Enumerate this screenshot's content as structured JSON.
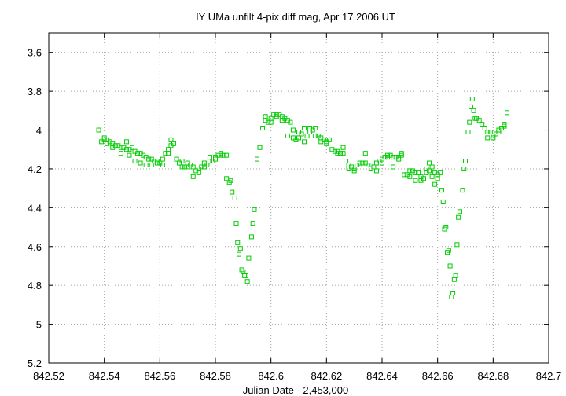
{
  "chart_data": {
    "type": "scatter",
    "title": "IY UMa unfilt 4-pix diff mag, Apr 17 2006 UT",
    "xlabel": "Julian Date - 2,453,000",
    "ylabel": "",
    "xlim": [
      842.52,
      842.7
    ],
    "ylim": [
      5.2,
      3.5
    ],
    "y_inverted": true,
    "grid": true,
    "legend": "none",
    "marker": "open-square",
    "color": "#00cc00",
    "x_ticks": [
      "842.52",
      "842.54",
      "842.56",
      "842.58",
      "842.6",
      "842.62",
      "842.64",
      "842.66",
      "842.68",
      "842.7"
    ],
    "x_tick_values": [
      842.52,
      842.54,
      842.56,
      842.58,
      842.6,
      842.62,
      842.64,
      842.66,
      842.68,
      842.7
    ],
    "y_ticks": [
      "3.6",
      "3.8",
      "4",
      "4.2",
      "4.4",
      "4.6",
      "4.8",
      "5",
      "5.2"
    ],
    "y_tick_values": [
      3.6,
      3.8,
      4.0,
      4.2,
      4.4,
      4.6,
      4.8,
      5.0,
      5.2
    ],
    "points": [
      [
        842.538,
        4.0
      ],
      [
        842.539,
        4.06
      ],
      [
        842.54,
        4.05
      ],
      [
        842.541,
        4.05
      ],
      [
        842.542,
        4.06
      ],
      [
        842.543,
        4.07
      ],
      [
        842.544,
        4.08
      ],
      [
        842.545,
        4.08
      ],
      [
        842.546,
        4.09
      ],
      [
        842.547,
        4.09
      ],
      [
        842.548,
        4.1
      ],
      [
        842.549,
        4.1
      ],
      [
        842.55,
        4.09
      ],
      [
        842.551,
        4.11
      ],
      [
        842.552,
        4.12
      ],
      [
        842.553,
        4.12
      ],
      [
        842.554,
        4.13
      ],
      [
        842.555,
        4.14
      ],
      [
        842.556,
        4.15
      ],
      [
        842.557,
        4.15
      ],
      [
        842.558,
        4.16
      ],
      [
        842.559,
        4.16
      ],
      [
        842.56,
        4.17
      ],
      [
        842.561,
        4.15
      ],
      [
        842.562,
        4.12
      ],
      [
        842.563,
        4.1
      ],
      [
        842.564,
        4.08
      ],
      [
        842.565,
        4.07
      ],
      [
        842.54,
        4.04
      ],
      [
        842.541,
        4.07
      ],
      [
        842.543,
        4.09
      ],
      [
        842.546,
        4.12
      ],
      [
        842.548,
        4.06
      ],
      [
        842.549,
        4.13
      ],
      [
        842.551,
        4.16
      ],
      [
        842.553,
        4.17
      ],
      [
        842.555,
        4.18
      ],
      [
        842.557,
        4.18
      ],
      [
        842.559,
        4.17
      ],
      [
        842.561,
        4.18
      ],
      [
        842.563,
        4.12
      ],
      [
        842.564,
        4.05
      ],
      [
        842.566,
        4.15
      ],
      [
        842.567,
        4.17
      ],
      [
        842.568,
        4.19
      ],
      [
        842.569,
        4.19
      ],
      [
        842.57,
        4.17
      ],
      [
        842.571,
        4.18
      ],
      [
        842.572,
        4.19
      ],
      [
        842.573,
        4.21
      ],
      [
        842.574,
        4.2
      ],
      [
        842.575,
        4.19
      ],
      [
        842.576,
        4.17
      ],
      [
        842.577,
        4.18
      ],
      [
        842.578,
        4.16
      ],
      [
        842.579,
        4.16
      ],
      [
        842.58,
        4.14
      ],
      [
        842.581,
        4.13
      ],
      [
        842.582,
        4.13
      ],
      [
        842.583,
        4.13
      ],
      [
        842.584,
        4.13
      ],
      [
        842.568,
        4.16
      ],
      [
        842.57,
        4.19
      ],
      [
        842.572,
        4.24
      ],
      [
        842.574,
        4.22
      ],
      [
        842.576,
        4.19
      ],
      [
        842.578,
        4.14
      ],
      [
        842.58,
        4.15
      ],
      [
        842.582,
        4.12
      ],
      [
        842.584,
        4.25
      ],
      [
        842.585,
        4.27
      ],
      [
        842.5855,
        4.26
      ],
      [
        842.586,
        4.32
      ],
      [
        842.587,
        4.35
      ],
      [
        842.5875,
        4.48
      ],
      [
        842.588,
        4.58
      ],
      [
        842.5885,
        4.64
      ],
      [
        842.589,
        4.61
      ],
      [
        842.5895,
        4.72
      ],
      [
        842.59,
        4.73
      ],
      [
        842.5905,
        4.75
      ],
      [
        842.591,
        4.75
      ],
      [
        842.5915,
        4.78
      ],
      [
        842.592,
        4.66
      ],
      [
        842.593,
        4.55
      ],
      [
        842.5935,
        4.48
      ],
      [
        842.594,
        4.41
      ],
      [
        842.595,
        4.15
      ],
      [
        842.596,
        4.09
      ],
      [
        842.597,
        3.99
      ],
      [
        842.598,
        3.93
      ],
      [
        842.599,
        3.96
      ],
      [
        842.6,
        3.96
      ],
      [
        842.601,
        3.92
      ],
      [
        842.602,
        3.93
      ],
      [
        842.603,
        3.92
      ],
      [
        842.604,
        3.93
      ],
      [
        842.605,
        3.94
      ],
      [
        842.606,
        3.95
      ],
      [
        842.607,
        3.96
      ],
      [
        842.608,
        4.0
      ],
      [
        842.609,
        4.05
      ],
      [
        842.61,
        4.04
      ],
      [
        842.611,
        4.02
      ],
      [
        842.612,
        4.06
      ],
      [
        842.613,
        4.03
      ],
      [
        842.614,
        4.01
      ],
      [
        842.615,
        4.0
      ],
      [
        842.616,
        3.99
      ],
      [
        842.617,
        4.03
      ],
      [
        842.618,
        4.04
      ],
      [
        842.619,
        4.05
      ],
      [
        842.62,
        4.06
      ],
      [
        842.621,
        4.05
      ],
      [
        842.598,
        3.95
      ],
      [
        842.6,
        3.94
      ],
      [
        842.602,
        3.92
      ],
      [
        842.604,
        3.95
      ],
      [
        842.606,
        4.03
      ],
      [
        842.608,
        4.04
      ],
      [
        842.61,
        4.01
      ],
      [
        842.612,
        3.99
      ],
      [
        842.614,
        3.99
      ],
      [
        842.616,
        4.03
      ],
      [
        842.618,
        4.06
      ],
      [
        842.62,
        4.07
      ],
      [
        842.622,
        4.1
      ],
      [
        842.623,
        4.11
      ],
      [
        842.624,
        4.11
      ],
      [
        842.625,
        4.12
      ],
      [
        842.626,
        4.12
      ],
      [
        842.627,
        4.16
      ],
      [
        842.628,
        4.18
      ],
      [
        842.629,
        4.19
      ],
      [
        842.63,
        4.2
      ],
      [
        842.631,
        4.18
      ],
      [
        842.632,
        4.17
      ],
      [
        842.633,
        4.17
      ],
      [
        842.634,
        4.17
      ],
      [
        842.635,
        4.18
      ],
      [
        842.636,
        4.18
      ],
      [
        842.637,
        4.19
      ],
      [
        842.638,
        4.17
      ],
      [
        842.639,
        4.16
      ],
      [
        842.64,
        4.15
      ],
      [
        842.641,
        4.14
      ],
      [
        842.642,
        4.14
      ],
      [
        842.643,
        4.13
      ],
      [
        842.644,
        4.14
      ],
      [
        842.645,
        4.14
      ],
      [
        842.646,
        4.14
      ],
      [
        842.647,
        4.13
      ],
      [
        842.624,
        4.12
      ],
      [
        842.626,
        4.09
      ],
      [
        842.628,
        4.2
      ],
      [
        842.63,
        4.21
      ],
      [
        842.632,
        4.18
      ],
      [
        842.634,
        4.12
      ],
      [
        842.636,
        4.2
      ],
      [
        842.638,
        4.21
      ],
      [
        842.64,
        4.17
      ],
      [
        842.642,
        4.13
      ],
      [
        842.644,
        4.19
      ],
      [
        842.646,
        4.15
      ],
      [
        842.647,
        4.12
      ],
      [
        842.648,
        4.23
      ],
      [
        842.649,
        4.23
      ],
      [
        842.65,
        4.21
      ],
      [
        842.651,
        4.21
      ],
      [
        842.652,
        4.22
      ],
      [
        842.653,
        4.22
      ],
      [
        842.654,
        4.24
      ],
      [
        842.655,
        4.25
      ],
      [
        842.656,
        4.22
      ],
      [
        842.657,
        4.21
      ],
      [
        842.658,
        4.19
      ],
      [
        842.659,
        4.22
      ],
      [
        842.66,
        4.25
      ],
      [
        842.661,
        4.22
      ],
      [
        842.6615,
        4.31
      ],
      [
        842.662,
        4.37
      ],
      [
        842.6625,
        4.51
      ],
      [
        842.663,
        4.5
      ],
      [
        842.6635,
        4.63
      ],
      [
        842.664,
        4.62
      ],
      [
        842.6645,
        4.7
      ],
      [
        842.665,
        4.86
      ],
      [
        842.6655,
        4.84
      ],
      [
        842.666,
        4.77
      ],
      [
        842.6665,
        4.75
      ],
      [
        842.667,
        4.59
      ],
      [
        842.6675,
        4.45
      ],
      [
        842.668,
        4.42
      ],
      [
        842.669,
        4.31
      ],
      [
        842.6695,
        4.2
      ],
      [
        842.67,
        4.16
      ],
      [
        842.671,
        4.01
      ],
      [
        842.6715,
        3.96
      ],
      [
        842.672,
        3.88
      ],
      [
        842.6725,
        3.84
      ],
      [
        842.673,
        3.9
      ],
      [
        842.6735,
        3.94
      ],
      [
        842.674,
        3.94
      ],
      [
        842.675,
        3.95
      ],
      [
        842.676,
        3.97
      ],
      [
        842.677,
        3.99
      ],
      [
        842.678,
        4.01
      ],
      [
        842.679,
        4.01
      ],
      [
        842.68,
        4.03
      ],
      [
        842.681,
        4.02
      ],
      [
        842.682,
        4.0
      ],
      [
        842.683,
        3.99
      ],
      [
        842.684,
        3.97
      ],
      [
        842.685,
        3.91
      ],
      [
        842.65,
        4.24
      ],
      [
        842.652,
        4.26
      ],
      [
        842.654,
        4.26
      ],
      [
        842.656,
        4.2
      ],
      [
        842.657,
        4.17
      ],
      [
        842.658,
        4.24
      ],
      [
        842.659,
        4.28
      ],
      [
        842.66,
        4.23
      ],
      [
        842.678,
        4.04
      ],
      [
        842.68,
        4.04
      ],
      [
        842.682,
        4.01
      ],
      [
        842.684,
        3.98
      ]
    ]
  }
}
